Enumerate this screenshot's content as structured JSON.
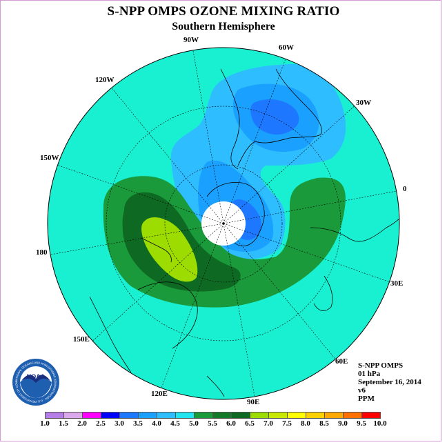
{
  "header": {
    "title": "S-NPP OMPS OZONE MIXING RATIO",
    "subtitle": "Southern Hemisphere"
  },
  "longitude_labels": [
    "90W",
    "60W",
    "30W",
    "0",
    "30E",
    "60E",
    "90E",
    "120E",
    "150E",
    "180",
    "150W",
    "120W"
  ],
  "info": {
    "instrument": "S-NPP OMPS",
    "level": "01 hPa",
    "date": "September 16, 2014",
    "version": "v6",
    "units": "PPM"
  },
  "legend": {
    "tick_labels": [
      "1.0",
      "1.5",
      "2.0",
      "2.5",
      "3.0",
      "3.5",
      "4.0",
      "4.5",
      "5.0",
      "5.5",
      "6.0",
      "6.5",
      "7.0",
      "7.5",
      "8.0",
      "8.5",
      "9.0",
      "9.5",
      "10.0"
    ],
    "colors": [
      "#b57ee6",
      "#dca8ec",
      "#ff00ff",
      "#0000ff",
      "#1e78ff",
      "#1aa0ff",
      "#2ebdff",
      "#20e4f0",
      "#1a9a3a",
      "#137a2a",
      "#0e6a22",
      "#9ddc00",
      "#c8e800",
      "#ffff00",
      "#ffd000",
      "#ffa800",
      "#ff7000",
      "#ff0000",
      "#8b5a2b"
    ]
  },
  "logo": {
    "text": "NOAA",
    "ring_text": "NATIONAL OCEANIC AND ATMOSPHERIC ADMINISTRATION · U.S. DEPARTMENT OF COMMERCE",
    "colors": {
      "outer": "#1f5fb0",
      "inner": "#ffffff",
      "bird": "#1a2f80"
    }
  },
  "map_colors": {
    "background": "#19f0d2",
    "light_blue": "#2ebdff",
    "blue": "#1aa0ff",
    "dark_blue": "#1e78ff",
    "green": "#1a9a3a",
    "dark_green": "#0e6a22",
    "yellow_green": "#9ddc00",
    "pole": "#ffffff"
  }
}
